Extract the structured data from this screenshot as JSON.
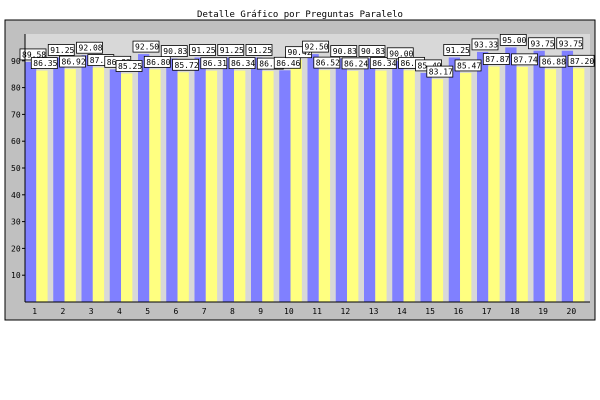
{
  "chart_data": {
    "type": "bar",
    "title": "Detalle Gráfico por Preguntas Paralelo",
    "xlabel": "",
    "ylabel": "",
    "ylim": [
      0,
      100
    ],
    "yticks": [
      10,
      20,
      30,
      40,
      50,
      60,
      70,
      80,
      90
    ],
    "grid": false,
    "legend": "none",
    "categories": [
      "1",
      "2",
      "3",
      "4",
      "5",
      "6",
      "7",
      "8",
      "9",
      "10",
      "11",
      "12",
      "13",
      "14",
      "15",
      "16",
      "17",
      "18",
      "19",
      "20"
    ],
    "series": [
      {
        "color": "#8080ff",
        "values": [
          89.58,
          91.25,
          92.08,
          86.82,
          92.5,
          90.83,
          91.25,
          91.25,
          91.25,
          86.46,
          92.5,
          90.83,
          90.83,
          90.0,
          85.49,
          91.25,
          93.33,
          95.0,
          93.75,
          93.75
        ]
      },
      {
        "color": "#ffff80",
        "values": [
          86.35,
          86.92,
          87.47,
          85.25,
          86.8,
          85.72,
          86.31,
          86.34,
          86.16,
          90.42,
          86.52,
          86.24,
          86.34,
          86.43,
          83.17,
          85.47,
          87.87,
          87.74,
          86.88,
          87.2
        ]
      }
    ],
    "data_labels": {
      "series_0": [
        "89.58",
        "91.25",
        "92.08",
        "86.82",
        "92.50",
        "90.83",
        "91.25",
        "91.25",
        "91.25",
        "86.46",
        "92.50",
        "90.83",
        "90.83",
        "90.00",
        "85.49",
        "91.25",
        "93.33",
        "95.00",
        "93.75",
        "93.75"
      ],
      "series_1": [
        "86.35",
        "86.92",
        "87.47",
        "85.25",
        "86.80",
        "85.72",
        "86.31",
        "86.34",
        "86.16",
        "90.42",
        "86.52",
        "86.24",
        "86.34",
        "86.43",
        "83.17",
        "85.47",
        "87.87",
        "87.74",
        "86.88",
        "87.20"
      ]
    }
  }
}
